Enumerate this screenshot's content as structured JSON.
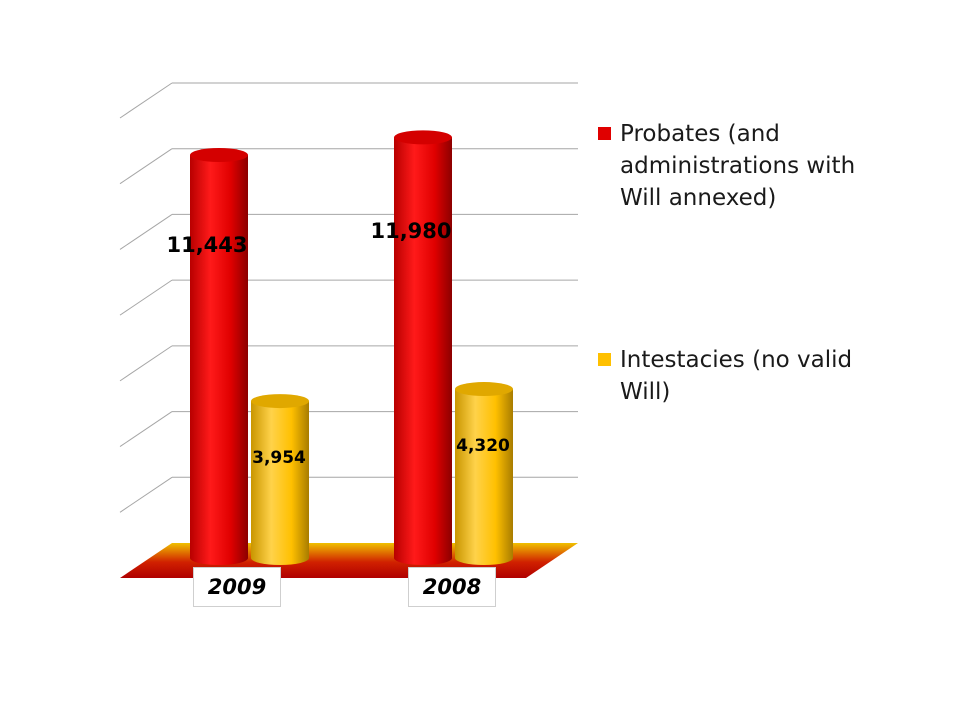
{
  "chart_data": {
    "type": "bar",
    "categories": [
      "2009",
      "2008"
    ],
    "series": [
      {
        "name": "Probates (and administrations with Will annexed)",
        "values": [
          11443,
          11980
        ],
        "labels": [
          "11,443",
          "11,980"
        ],
        "color": "#e00000"
      },
      {
        "name": "Intestacies (no valid Will)",
        "values": [
          3954,
          4320
        ],
        "labels": [
          "3,954",
          "4,320"
        ],
        "color": "#ffc000"
      }
    ],
    "ylim": [
      0,
      14000
    ],
    "y_gridline_step": 2000,
    "grid": true,
    "legend_position": "right",
    "three_d": true
  }
}
